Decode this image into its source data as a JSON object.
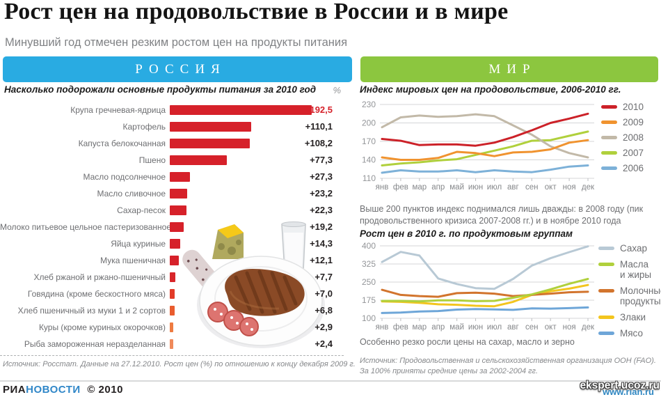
{
  "page": {
    "title": "Рост цен на продовольствие в России и в мире",
    "subtitle": "Минувший год отмечен резким ростом цен на продукты питания"
  },
  "tabs": {
    "russia_label": "РОССИЯ",
    "world_label": "МИР",
    "russia_color": "#29abe2",
    "world_color": "#8cc63f"
  },
  "russia_section": {
    "chart_title": "Насколько подорожали основные продукты питания за 2010 год",
    "unit_label": "%",
    "source": "Источник: Росстат. Данные на 27.12.2010. Рост цен (%) по отношению к концу декабря 2009 г."
  },
  "world_section": {
    "note_between": "Выше 200 пунктов индекс поднимался лишь дважды: в 2008 году (пик продовольственного кризиса 2007-2008 гг.) и в ноябре 2010 года",
    "note_bottom": "Особенно резко росли цены на сахар, масло и зерно",
    "source": "Источник: Продовольственная и сельскохозяйственная организация ООН (FAO). За 100% приняты средние цены за 2002-2004 гг."
  },
  "footer": {
    "brand_ria": "РИА",
    "brand_novosti": "НОВОСТИ",
    "copyright": "© 2010",
    "watermark": "ekspert.ucoz.ru",
    "site_url": "www.rian.ru"
  },
  "chart_data": [
    {
      "type": "bar",
      "orientation": "horizontal",
      "title": "Насколько подорожали основные продукты питания за 2010 год",
      "unit": "%",
      "categories": [
        "Крупа гречневая-ядрица",
        "Картофель",
        "Капуста белокочанная",
        "Пшено",
        "Масло подсолнечное",
        "Масло сливочное",
        "Сахар-песок",
        "Молоко питьевое цельное пастеризованное",
        "Яйца куриные",
        "Мука пшеничная",
        "Хлеб ржаной и ржано-пшеничный",
        "Говядина (кроме бескостного мяса)",
        "Хлеб пшеничный из муки 1 и 2 сортов",
        "Куры (кроме куриных окорочков)",
        "Рыба замороженная неразделанная"
      ],
      "values": [
        192.5,
        110.1,
        108.2,
        77.3,
        27.3,
        23.2,
        22.3,
        19.2,
        14.3,
        12.1,
        7.7,
        7.0,
        6.8,
        2.9,
        2.4
      ],
      "value_labels": [
        "+192,5",
        "+110,1",
        "+108,2",
        "+77,3",
        "+27,3",
        "+23,2",
        "+22,3",
        "+19,2",
        "+14,3",
        "+12,1",
        "+7,7",
        "+7,0",
        "+6,8",
        "+2,9",
        "+2,4"
      ],
      "bar_colors": [
        "#d6212a",
        "#d6212a",
        "#d6212a",
        "#d6212a",
        "#d6212a",
        "#d6212a",
        "#d6212a",
        "#d6212a",
        "#d6212a",
        "#d6212a",
        "#d8262a",
        "#e23b28",
        "#e95c2e",
        "#ee7b41",
        "#f08a5b"
      ],
      "highlight_index": 0,
      "highlight_color": "#d6212a"
    },
    {
      "type": "line",
      "title": "Индекс мировых цен на продовольствие, 2006-2010 гг.",
      "x": [
        "янв",
        "фев",
        "мар",
        "апр",
        "май",
        "июн",
        "июл",
        "авг",
        "сен",
        "окт",
        "ноя",
        "дек"
      ],
      "ylim": [
        110,
        230
      ],
      "yticks": [
        230,
        200,
        170,
        140,
        110
      ],
      "grid": true,
      "legend_position": "right",
      "series": [
        {
          "name": "2010",
          "color": "#cc2128",
          "values": [
            174,
            171,
            164,
            165,
            165,
            163,
            168,
            177,
            188,
            200,
            207,
            215
          ]
        },
        {
          "name": "2009",
          "color": "#f0932f",
          "values": [
            144,
            140,
            140,
            143,
            153,
            151,
            146,
            152,
            153,
            157,
            168,
            172
          ]
        },
        {
          "name": "2008",
          "color": "#c2b9a8",
          "values": [
            193,
            209,
            212,
            210,
            211,
            214,
            211,
            196,
            181,
            162,
            151,
            144
          ]
        },
        {
          "name": "2007",
          "color": "#b0d03c",
          "values": [
            131,
            134,
            136,
            139,
            141,
            148,
            155,
            162,
            171,
            172,
            179,
            186
          ]
        },
        {
          "name": "2006",
          "color": "#7db1d8",
          "values": [
            119,
            123,
            121,
            121,
            123,
            120,
            123,
            121,
            120,
            124,
            129,
            131
          ]
        }
      ]
    },
    {
      "type": "line",
      "title": "Рост цен в 2010 г. по продуктовым группам",
      "x": [
        "янв",
        "фев",
        "мар",
        "апр",
        "май",
        "июн",
        "июл",
        "авг",
        "сен",
        "окт",
        "ноя",
        "дек"
      ],
      "ylim": [
        100,
        400
      ],
      "yticks": [
        400,
        325,
        250,
        175,
        100
      ],
      "grid": true,
      "legend_position": "right",
      "series": [
        {
          "name": "Сахар",
          "legend": "Сахар",
          "color": "#b8c9d5",
          "values": [
            333,
            375,
            360,
            265,
            242,
            225,
            222,
            263,
            318,
            349,
            374,
            398
          ]
        },
        {
          "name": "Масла и жиры",
          "legend": "Масла\nи жиры",
          "color": "#b0d03c",
          "values": [
            172,
            172,
            170,
            174,
            174,
            171,
            172,
            185,
            199,
            220,
            243,
            263
          ]
        },
        {
          "name": "Молочные продукты",
          "legend": "Молочные\nпродукты",
          "color": "#d2742d",
          "values": [
            218,
            197,
            192,
            189,
            204,
            206,
            202,
            192,
            197,
            202,
            208,
            210
          ]
        },
        {
          "name": "Злаки",
          "legend": "Злаки",
          "color": "#f3c51e",
          "values": [
            170,
            168,
            164,
            158,
            156,
            152,
            150,
            168,
            197,
            212,
            223,
            238
          ]
        },
        {
          "name": "Мясо",
          "legend": "Мясо",
          "color": "#6ea6d8",
          "values": [
            122,
            124,
            128,
            130,
            136,
            138,
            137,
            135,
            141,
            140,
            142,
            145
          ]
        }
      ]
    }
  ]
}
